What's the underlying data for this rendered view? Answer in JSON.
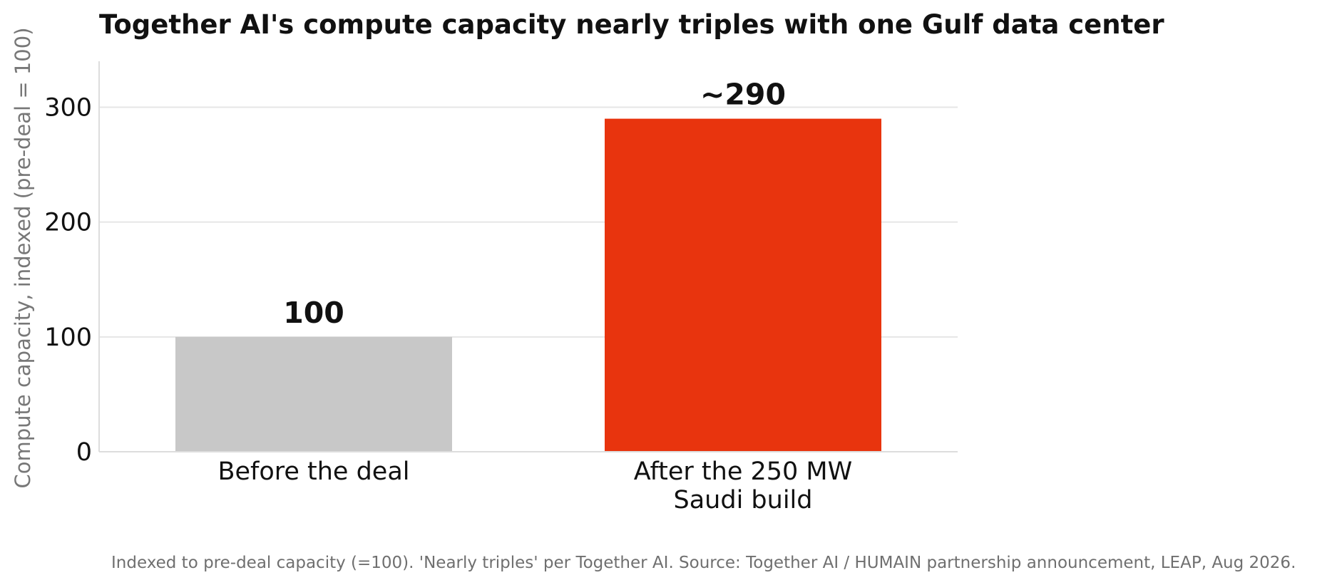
{
  "chart_data": {
    "type": "bar",
    "title": "Together AI's compute capacity nearly triples with one Gulf data center",
    "xlabel": "",
    "ylabel": "Compute capacity, indexed (pre-deal = 100)",
    "categories": [
      "Before the deal",
      "After the 250 MW\nSaudi build"
    ],
    "values": [
      100,
      290
    ],
    "data_labels": [
      "100",
      "~290"
    ],
    "bar_colors": [
      "#c8c8c8",
      "#e8340e"
    ],
    "ylim": [
      0,
      340
    ],
    "yticks": [
      0,
      100,
      200,
      300
    ],
    "ytick_labels": [
      "0",
      "100",
      "200",
      "300"
    ],
    "grid": "horizontal",
    "legend": "none"
  },
  "caption": "Indexed to pre-deal capacity (=100). 'Nearly triples' per Together AI. Source: Together AI / HUMAIN partnership announcement, LEAP, Aug 2026."
}
